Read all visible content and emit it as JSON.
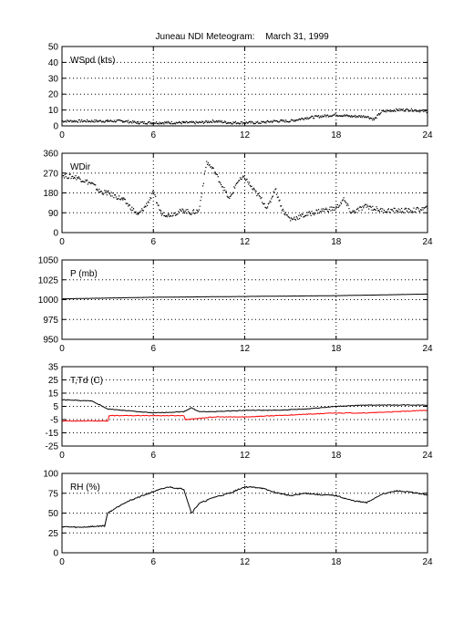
{
  "figure": {
    "title": "Juneau NDI Meteogram:",
    "date": "March 31, 1999"
  },
  "chart_data": [
    {
      "type": "scatter",
      "panel_label": "WSpd (kts)",
      "xlim": [
        0,
        24
      ],
      "ylim": [
        0,
        50
      ],
      "xticks": [
        0,
        6,
        12,
        18,
        24
      ],
      "yticks": [
        0,
        10,
        20,
        30,
        40,
        50
      ],
      "grid": true,
      "series": [
        {
          "color": "#000000",
          "x": [
            0,
            1,
            2,
            3,
            4,
            5,
            6,
            7,
            8,
            9,
            10,
            11,
            12,
            13,
            14,
            15,
            16,
            17,
            18,
            19,
            20,
            20.5,
            21,
            22,
            23,
            24
          ],
          "y": [
            3,
            3,
            3,
            3,
            3,
            2,
            2,
            2,
            2,
            2,
            3,
            2,
            2,
            2,
            3,
            3,
            5,
            6,
            7,
            6,
            6,
            4,
            9,
            10,
            10,
            9
          ]
        }
      ]
    },
    {
      "type": "scatter",
      "panel_label": "WDir",
      "xlim": [
        0,
        24
      ],
      "ylim": [
        0,
        360
      ],
      "xticks": [
        0,
        6,
        12,
        18,
        24
      ],
      "yticks": [
        0,
        90,
        180,
        270,
        360
      ],
      "grid": true,
      "series": [
        {
          "color": "#000000",
          "x": [
            0,
            1,
            2,
            2.5,
            3,
            4,
            5,
            5.5,
            6,
            6.5,
            7,
            8,
            8.5,
            9,
            9.5,
            10,
            11,
            11.5,
            12,
            12.5,
            13,
            13.5,
            14,
            14.5,
            15,
            15.5,
            16,
            17,
            18,
            18.5,
            19,
            20,
            21,
            22,
            23,
            24
          ],
          "y": [
            260,
            250,
            220,
            185,
            180,
            150,
            80,
            120,
            180,
            90,
            80,
            100,
            90,
            100,
            320,
            280,
            150,
            230,
            250,
            200,
            160,
            110,
            200,
            100,
            60,
            70,
            80,
            100,
            110,
            150,
            90,
            120,
            100,
            100,
            100,
            110
          ]
        }
      ]
    },
    {
      "type": "line",
      "panel_label": "P (mb)",
      "xlim": [
        0,
        24
      ],
      "ylim": [
        950,
        1050
      ],
      "xticks": [
        0,
        6,
        12,
        18,
        24
      ],
      "yticks": [
        950,
        975,
        1000,
        1025,
        1050
      ],
      "grid": true,
      "series": [
        {
          "color": "#000000",
          "x": [
            0,
            6,
            12,
            18,
            24
          ],
          "y": [
            1001,
            1003,
            1004,
            1005,
            1007
          ]
        }
      ]
    },
    {
      "type": "line",
      "panel_label": "T,Td (C)",
      "xlim": [
        0,
        24
      ],
      "ylim": [
        -25,
        35
      ],
      "xticks": [
        0,
        6,
        12,
        18,
        24
      ],
      "yticks": [
        -25,
        -15,
        -5,
        5,
        15,
        25,
        35
      ],
      "grid": true,
      "series": [
        {
          "color": "#000000",
          "x": [
            0,
            2,
            3,
            4,
            6,
            8,
            8.5,
            9,
            10,
            12,
            14,
            16,
            18,
            20,
            22,
            24
          ],
          "y": [
            10,
            9,
            3,
            2,
            0,
            1,
            4,
            1,
            1,
            2,
            2,
            3,
            5,
            6,
            6,
            6
          ]
        },
        {
          "color": "#ff0000",
          "x": [
            0,
            3,
            3.1,
            5,
            8,
            8.1,
            10,
            12,
            14,
            16,
            18,
            20,
            22,
            24
          ],
          "y": [
            -6,
            -6,
            -2,
            -2,
            -2,
            -5,
            -3,
            -3,
            -2,
            -1,
            0,
            0,
            1,
            2
          ]
        }
      ]
    },
    {
      "type": "line",
      "panel_label": "RH (%)",
      "xlim": [
        0,
        24
      ],
      "ylim": [
        0,
        100
      ],
      "xticks": [
        0,
        6,
        12,
        18,
        24
      ],
      "yticks": [
        0,
        25,
        50,
        75,
        100
      ],
      "grid": true,
      "series": [
        {
          "color": "#000000",
          "x": [
            0,
            1,
            2,
            2.8,
            3,
            4,
            5,
            6,
            7,
            8,
            8.5,
            9,
            10,
            11,
            12,
            13,
            14,
            15,
            16,
            17,
            18,
            19,
            20,
            21,
            22,
            23,
            24
          ],
          "y": [
            33,
            32,
            33,
            34,
            50,
            62,
            70,
            77,
            83,
            80,
            50,
            62,
            70,
            75,
            83,
            82,
            76,
            72,
            75,
            73,
            72,
            66,
            63,
            74,
            78,
            76,
            73
          ]
        }
      ]
    }
  ]
}
